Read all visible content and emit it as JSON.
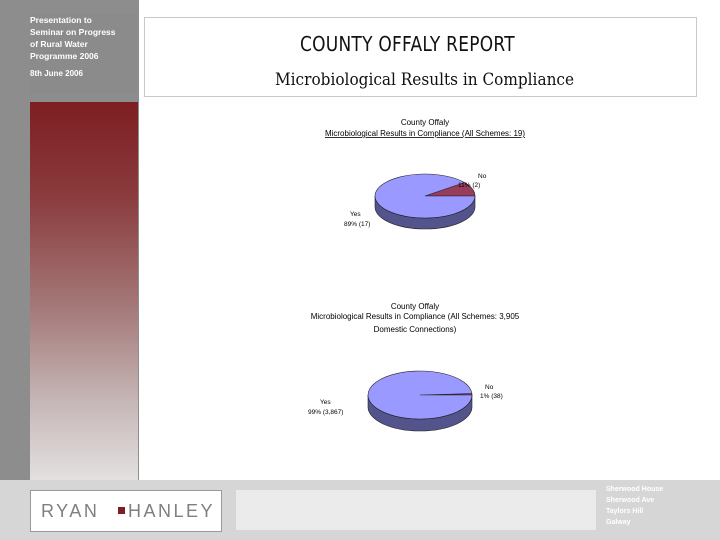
{
  "side": {
    "lines": [
      "Presentation to",
      "Seminar on Progress",
      "of Rural Water",
      "Programme 2006"
    ],
    "date": "8th June 2006"
  },
  "header": {
    "title": "COUNTY OFFALY REPORT",
    "subtitle": "Microbiological Results in Compliance"
  },
  "chart_data": [
    {
      "type": "pie",
      "title": "County Offaly",
      "subtitle": "Microbiological Results in Compliance (All Schemes: 19)",
      "slices": [
        {
          "label": "No",
          "value": 2,
          "value_label": "11% (2)"
        },
        {
          "label": "Yes",
          "value": 17,
          "value_label": "89% (17)"
        }
      ],
      "colors": {
        "No": "#953d5b",
        "Yes": "#9999ff"
      }
    },
    {
      "type": "pie",
      "title": "County Offaly",
      "subtitle": "Microbiological Results in Compliance (All Schemes: 3,905",
      "subtitle2": "Domestic Connections)",
      "slices": [
        {
          "label": "No",
          "value": 38,
          "value_label": "1% (38)"
        },
        {
          "label": "Yes",
          "value": 3867,
          "value_label": "99% (3,867)"
        }
      ],
      "colors": {
        "No": "#953d5b",
        "Yes": "#9999ff"
      }
    }
  ],
  "footer": {
    "logo_left": "RYAN",
    "logo_right": "HANLEY",
    "address": [
      "Sherwood House",
      "Sherwood Ave",
      "Taylors Hill",
      "Galway"
    ]
  }
}
